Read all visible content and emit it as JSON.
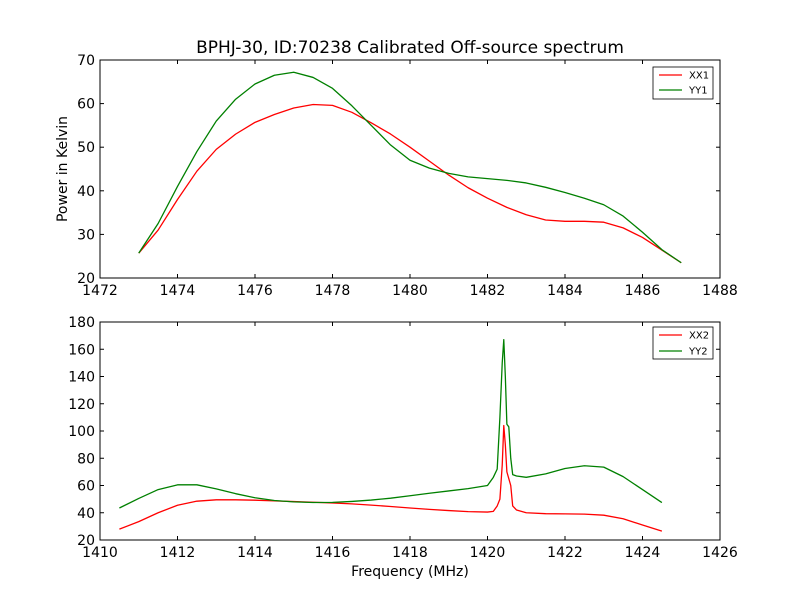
{
  "chart_data": [
    {
      "type": "line",
      "title": "BPHJ-30, ID:70238 Calibrated Off-source spectrum",
      "xlabel": "",
      "ylabel": "Power in Kelvin",
      "xlim": [
        1472,
        1488
      ],
      "ylim": [
        20,
        70
      ],
      "xticks": [
        1472,
        1474,
        1476,
        1478,
        1480,
        1482,
        1484,
        1486,
        1488
      ],
      "yticks": [
        20,
        30,
        40,
        50,
        60,
        70
      ],
      "legend_position": "top-right",
      "grid": false,
      "series": [
        {
          "name": "XX1",
          "color": "#ff0000",
          "x": [
            1473.0,
            1473.5,
            1474.0,
            1474.5,
            1475.0,
            1475.5,
            1476.0,
            1476.5,
            1477.0,
            1477.5,
            1478.0,
            1478.5,
            1479.0,
            1479.5,
            1480.0,
            1480.5,
            1481.0,
            1481.5,
            1482.0,
            1482.5,
            1483.0,
            1483.5,
            1484.0,
            1484.5,
            1485.0,
            1485.5,
            1486.0,
            1486.5,
            1487.0
          ],
          "y": [
            25.7,
            31.0,
            38.0,
            44.5,
            49.5,
            53.0,
            55.7,
            57.5,
            59.0,
            59.8,
            59.6,
            58.0,
            55.6,
            53.0,
            50.0,
            46.8,
            43.6,
            40.7,
            38.3,
            36.2,
            34.5,
            33.3,
            33.0,
            33.0,
            32.8,
            31.5,
            29.3,
            26.4,
            23.5
          ]
        },
        {
          "name": "YY1",
          "color": "#008000",
          "x": [
            1473.0,
            1473.5,
            1474.0,
            1474.5,
            1475.0,
            1475.5,
            1476.0,
            1476.5,
            1477.0,
            1477.5,
            1478.0,
            1478.5,
            1479.0,
            1479.5,
            1480.0,
            1480.5,
            1481.0,
            1481.5,
            1482.0,
            1482.5,
            1483.0,
            1483.5,
            1484.0,
            1484.5,
            1485.0,
            1485.5,
            1486.0,
            1486.5,
            1487.0
          ],
          "y": [
            25.7,
            32.5,
            41.0,
            49.0,
            56.0,
            61.0,
            64.5,
            66.5,
            67.2,
            66.0,
            63.5,
            59.5,
            55.0,
            50.5,
            47.0,
            45.2,
            44.0,
            43.2,
            42.8,
            42.4,
            41.8,
            40.8,
            39.6,
            38.3,
            36.8,
            34.2,
            30.5,
            26.5,
            23.5
          ]
        }
      ]
    },
    {
      "type": "line",
      "title": "",
      "xlabel": "Frequency (MHz)",
      "ylabel": "",
      "xlim": [
        1410,
        1426
      ],
      "ylim": [
        20,
        180
      ],
      "xticks": [
        1410,
        1412,
        1414,
        1416,
        1418,
        1420,
        1422,
        1424,
        1426
      ],
      "yticks": [
        20,
        40,
        60,
        80,
        100,
        120,
        140,
        160,
        180
      ],
      "legend_position": "top-right",
      "grid": false,
      "series": [
        {
          "name": "XX2",
          "color": "#ff0000",
          "x": [
            1410.5,
            1411.0,
            1411.5,
            1412.0,
            1412.5,
            1413.0,
            1413.5,
            1414.0,
            1414.5,
            1415.0,
            1415.5,
            1416.0,
            1416.5,
            1417.0,
            1417.5,
            1418.0,
            1418.5,
            1419.0,
            1419.5,
            1420.0,
            1420.15,
            1420.25,
            1420.32,
            1420.38,
            1420.42,
            1420.46,
            1420.5,
            1420.55,
            1420.6,
            1420.65,
            1420.75,
            1421.0,
            1421.5,
            1422.0,
            1422.5,
            1423.0,
            1423.5,
            1424.0,
            1424.5
          ],
          "y": [
            28.0,
            33.5,
            40.0,
            45.5,
            48.5,
            49.5,
            49.5,
            49.2,
            48.7,
            48.2,
            47.7,
            47.2,
            46.5,
            45.6,
            44.6,
            43.5,
            42.5,
            41.6,
            40.8,
            40.5,
            41.0,
            45.0,
            50.0,
            75.0,
            104.0,
            90.0,
            70.0,
            65.0,
            60.0,
            45.0,
            42.0,
            40.0,
            39.3,
            39.2,
            39.0,
            38.2,
            35.6,
            31.0,
            26.5
          ]
        },
        {
          "name": "YY2",
          "color": "#008000",
          "x": [
            1410.5,
            1411.0,
            1411.5,
            1412.0,
            1412.5,
            1413.0,
            1413.5,
            1414.0,
            1414.5,
            1415.0,
            1415.5,
            1416.0,
            1416.5,
            1417.0,
            1417.5,
            1418.0,
            1418.5,
            1419.0,
            1419.5,
            1420.0,
            1420.15,
            1420.25,
            1420.32,
            1420.38,
            1420.42,
            1420.46,
            1420.5,
            1420.55,
            1420.6,
            1420.65,
            1420.75,
            1421.0,
            1421.5,
            1422.0,
            1422.5,
            1423.0,
            1423.5,
            1424.0,
            1424.5
          ],
          "y": [
            43.5,
            50.5,
            57.0,
            60.5,
            60.5,
            57.5,
            54.0,
            51.0,
            49.0,
            48.0,
            47.5,
            47.6,
            48.3,
            49.3,
            50.7,
            52.5,
            54.3,
            56.0,
            57.7,
            60.0,
            66.0,
            72.0,
            110.0,
            150.0,
            167.0,
            140.0,
            105.0,
            103.0,
            80.0,
            68.0,
            67.0,
            66.0,
            68.5,
            72.5,
            74.5,
            73.5,
            66.5,
            57.0,
            47.5
          ]
        }
      ]
    }
  ]
}
